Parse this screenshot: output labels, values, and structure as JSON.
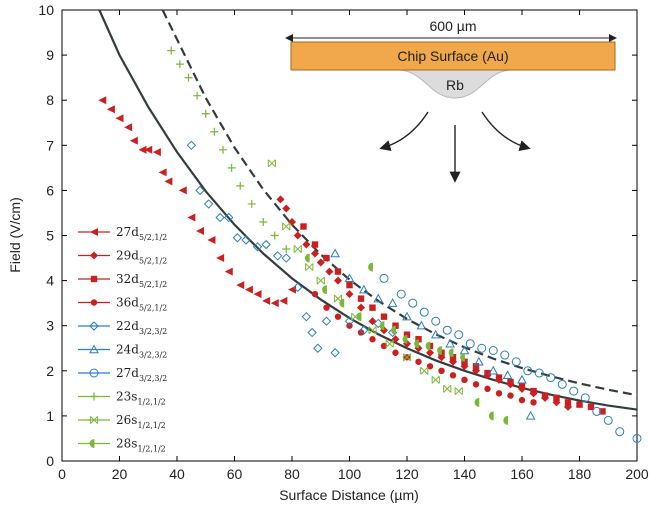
{
  "chart_data": {
    "type": "scatter",
    "title": "",
    "xlabel": "Surface Distance (µm)",
    "ylabel": "Field (V/cm)",
    "xlim": [
      0,
      200
    ],
    "ylim": [
      0,
      10
    ],
    "xticks": [
      0,
      20,
      40,
      60,
      80,
      100,
      120,
      140,
      160,
      180,
      200
    ],
    "yticks": [
      0,
      1,
      2,
      3,
      4,
      5,
      6,
      7,
      8,
      9,
      10
    ],
    "grid": false,
    "legend_position": "left",
    "colors": {
      "red": "#cc1f1f",
      "blue": "#2a7fc0",
      "green": "#7ab83a",
      "curve": "#333d3d"
    },
    "series": [
      {
        "name": "27d",
        "sub": "5/2,1/2",
        "color": "#cc1f1f",
        "marker": "triangle-left",
        "x": [
          14,
          17,
          20,
          23,
          25,
          28,
          30,
          33,
          35,
          37,
          42,
          45,
          48,
          52,
          55,
          58,
          62,
          65,
          68,
          71,
          74,
          77,
          80
        ],
        "y": [
          8.0,
          7.8,
          7.6,
          7.4,
          7.1,
          6.9,
          6.9,
          6.85,
          6.4,
          6.2,
          6.0,
          5.4,
          5.1,
          4.9,
          4.5,
          4.2,
          3.9,
          3.8,
          3.7,
          3.55,
          3.5,
          3.55,
          3.8
        ]
      },
      {
        "name": "29d",
        "sub": "5/2,1/2",
        "color": "#cc1f1f",
        "marker": "diamond",
        "x": [
          76,
          78,
          80,
          82,
          85,
          88,
          90,
          93,
          96,
          100,
          104,
          108,
          112,
          116,
          120,
          124,
          128,
          132,
          136,
          140,
          144,
          148,
          152,
          156,
          160,
          164,
          168,
          172,
          176
        ],
        "y": [
          5.8,
          5.6,
          5.3,
          5.0,
          4.8,
          4.6,
          4.4,
          4.2,
          4.0,
          3.7,
          3.4,
          3.1,
          2.9,
          2.7,
          2.6,
          2.5,
          2.4,
          2.3,
          2.2,
          2.1,
          2.0,
          1.9,
          1.8,
          1.7,
          1.6,
          1.5,
          1.4,
          1.3,
          1.2
        ]
      },
      {
        "name": "32d",
        "sub": "5/2,1/2",
        "color": "#cc1f1f",
        "marker": "square",
        "x": [
          84,
          88,
          92,
          96,
          100,
          104,
          108,
          112,
          116,
          120,
          124,
          128,
          132,
          136,
          140,
          144,
          148,
          152,
          156,
          160,
          164,
          168,
          172,
          176,
          180,
          184,
          188
        ],
        "y": [
          5.2,
          4.8,
          4.5,
          4.2,
          3.9,
          3.6,
          3.4,
          3.2,
          3.0,
          2.8,
          2.7,
          2.55,
          2.4,
          2.3,
          2.2,
          2.1,
          1.95,
          1.85,
          1.75,
          1.65,
          1.55,
          1.45,
          1.4,
          1.3,
          1.25,
          1.2,
          1.1
        ]
      },
      {
        "name": "36d",
        "sub": "5/2,1/2",
        "color": "#cc1f1f",
        "marker": "circle",
        "x": [
          88,
          92,
          96,
          100,
          104,
          108,
          112,
          116,
          120,
          124,
          128,
          132,
          136,
          140,
          144,
          148,
          152,
          156,
          160,
          164
        ],
        "y": [
          3.7,
          3.4,
          3.2,
          3.0,
          2.85,
          2.7,
          2.55,
          2.4,
          2.3,
          2.2,
          2.1,
          2.0,
          1.9,
          1.8,
          1.7,
          1.6,
          1.5,
          1.45,
          1.35,
          1.3
        ]
      },
      {
        "name": "22d",
        "sub": "3/2,3/2",
        "color": "#2a7fc0",
        "marker": "diamond-open",
        "x": [
          45,
          48,
          51,
          55,
          58,
          61,
          64,
          68,
          71,
          75,
          78,
          82,
          85,
          87,
          89,
          92,
          95,
          100,
          105,
          110,
          115
        ],
        "y": [
          7.0,
          6.0,
          5.7,
          5.4,
          5.4,
          4.95,
          4.9,
          4.75,
          4.8,
          4.55,
          4.5,
          3.85,
          3.2,
          2.85,
          2.5,
          3.1,
          2.4,
          3.1,
          2.9,
          3.05,
          2.85
        ]
      },
      {
        "name": "24d",
        "sub": "3/2,3/2",
        "color": "#2a7fc0",
        "marker": "triangle-open",
        "x": [
          95,
          100,
          105,
          110,
          115,
          120,
          125,
          130,
          135,
          140,
          145,
          150,
          155,
          160,
          163
        ],
        "y": [
          4.6,
          4.05,
          3.8,
          3.6,
          3.5,
          3.2,
          3.0,
          2.8,
          2.6,
          2.45,
          2.2,
          2.0,
          1.9,
          1.8,
          1.0
        ]
      },
      {
        "name": "27d",
        "sub": "3/2,3/2",
        "color": "#2a7fc0",
        "marker": "circle-open",
        "x": [
          112,
          118,
          122,
          126,
          130,
          134,
          138,
          142,
          146,
          150,
          154,
          158,
          162,
          166,
          170,
          174,
          178,
          182,
          186,
          190,
          194,
          200
        ],
        "y": [
          4.05,
          3.7,
          3.5,
          3.3,
          3.1,
          2.9,
          2.8,
          2.6,
          2.5,
          2.45,
          2.35,
          2.2,
          2.0,
          1.95,
          1.85,
          1.7,
          1.55,
          1.4,
          1.1,
          0.9,
          0.65,
          0.5
        ]
      },
      {
        "name": "23s",
        "sub": "1/2,1/2",
        "color": "#7ab83a",
        "marker": "plus",
        "x": [
          38,
          41,
          44,
          47,
          50,
          53,
          56,
          59,
          62,
          66,
          70,
          74,
          78
        ],
        "y": [
          9.1,
          8.8,
          8.5,
          8.1,
          7.7,
          7.3,
          6.9,
          6.5,
          6.1,
          5.7,
          5.3,
          5.0,
          4.7
        ]
      },
      {
        "name": "26s",
        "sub": "1/2,1/2",
        "color": "#7ab83a",
        "marker": "cross",
        "x": [
          73,
          78,
          82,
          86,
          90,
          96,
          102,
          108,
          114,
          120,
          126,
          130,
          134,
          138
        ],
        "y": [
          6.6,
          5.2,
          4.7,
          4.3,
          4.0,
          3.6,
          3.2,
          2.9,
          2.6,
          2.3,
          2.0,
          1.8,
          1.6,
          1.55
        ]
      },
      {
        "name": "28s",
        "sub": "1/2,1/2",
        "color": "#7ab83a",
        "marker": "half-circle",
        "x": [
          86,
          92,
          98,
          104,
          108,
          112,
          116,
          120,
          124,
          128,
          132,
          136,
          140,
          145,
          150,
          155
        ],
        "y": [
          4.5,
          3.8,
          3.5,
          3.2,
          4.3,
          3.0,
          2.9,
          2.7,
          2.6,
          2.55,
          2.45,
          2.4,
          2.3,
          1.3,
          1.0,
          0.9
        ]
      }
    ],
    "fit_curves": [
      {
        "style": "solid",
        "color": "#333d3d",
        "x": [
          13,
          20,
          30,
          40,
          50,
          60,
          70,
          80,
          90,
          100,
          110,
          120,
          130,
          140,
          150,
          160,
          170,
          180,
          190,
          200
        ],
        "y": [
          10.0,
          9.0,
          7.85,
          6.85,
          5.98,
          5.24,
          4.6,
          4.05,
          3.58,
          3.17,
          2.81,
          2.5,
          2.23,
          2.0,
          1.8,
          1.62,
          1.47,
          1.34,
          1.23,
          1.14
        ]
      },
      {
        "style": "dashed",
        "color": "#333d3d",
        "x": [
          35,
          40,
          50,
          60,
          70,
          80,
          90,
          100,
          110,
          120,
          130,
          140,
          150,
          160,
          170,
          180,
          190,
          200
        ],
        "y": [
          10.0,
          9.35,
          8.05,
          6.95,
          6.02,
          5.24,
          4.58,
          4.02,
          3.55,
          3.15,
          2.81,
          2.52,
          2.27,
          2.06,
          1.88,
          1.72,
          1.58,
          1.46
        ]
      }
    ],
    "inset": {
      "width_label": "600 µm",
      "surface_label": "Chip Surface (Au)",
      "atom_label": "Rb",
      "surface_color": "#f0a84a",
      "cloud_color": "#dcdcdc"
    }
  }
}
